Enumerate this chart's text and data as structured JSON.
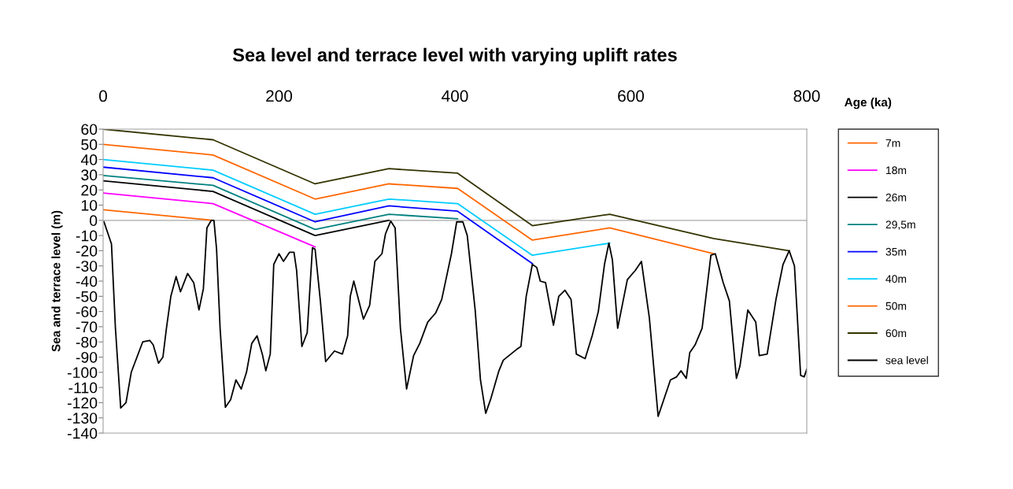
{
  "chart_data": {
    "type": "line",
    "title": "Sea level and terrace level with varying uplift rates",
    "xlabel": "Age (ka)",
    "ylabel": "Sea and terrace level (m)",
    "xlim": [
      0,
      800
    ],
    "xticks": [
      0,
      200,
      400,
      600,
      800
    ],
    "ylim": [
      -140,
      60
    ],
    "yticks": [
      -140,
      -130,
      -120,
      -110,
      -100,
      -90,
      -80,
      -70,
      -60,
      -50,
      -40,
      -30,
      -20,
      -10,
      0,
      10,
      20,
      30,
      40,
      50,
      60
    ],
    "grid": false,
    "legend": "right",
    "marker": "none",
    "line_style": "solid",
    "ref_lines": [
      {
        "axis": "y",
        "value": 0,
        "color": "#c0c0c0"
      }
    ],
    "series": [
      {
        "name": "7m",
        "color": "#ff6600",
        "x": [
          0,
          125
        ],
        "values": [
          7,
          0
        ]
      },
      {
        "name": "18m",
        "color": "#ff00ff",
        "x": [
          0,
          125,
          241
        ],
        "values": [
          18,
          11,
          -17.5
        ]
      },
      {
        "name": "26m",
        "color": "#000000",
        "x": [
          0,
          125,
          241,
          325
        ],
        "values": [
          26,
          19,
          -10,
          0
        ]
      },
      {
        "name": "29,5m",
        "color": "#008080",
        "x": [
          0,
          125,
          241,
          325,
          403
        ],
        "values": [
          29.5,
          23,
          -6,
          4,
          1
        ]
      },
      {
        "name": "35m",
        "color": "#0000ff",
        "x": [
          0,
          125,
          241,
          325,
          403,
          488
        ],
        "values": [
          35,
          28,
          -1,
          9.5,
          6,
          -28.5
        ]
      },
      {
        "name": "40m",
        "color": "#00ccff",
        "x": [
          0,
          125,
          241,
          325,
          403,
          488,
          576
        ],
        "values": [
          40,
          33,
          4,
          14,
          11,
          -23,
          -15
        ]
      },
      {
        "name": "50m",
        "color": "#ff6600",
        "x": [
          0,
          125,
          241,
          325,
          403,
          488,
          576,
          694
        ],
        "values": [
          50,
          43,
          14,
          24,
          21,
          -13,
          -5,
          -22
        ]
      },
      {
        "name": "60m",
        "color": "#333300",
        "x": [
          0,
          125,
          241,
          325,
          403,
          488,
          576,
          694,
          780
        ],
        "values": [
          60,
          53,
          24,
          34,
          31,
          -3.5,
          4,
          -12,
          -20
        ]
      },
      {
        "name": "sea level",
        "color": "#000000",
        "x": [
          1,
          9.5,
          14,
          20,
          26,
          32,
          45,
          53,
          57,
          63,
          68,
          72,
          77,
          83,
          88,
          96,
          103,
          109,
          114,
          118,
          123,
          126,
          129,
          133,
          139,
          145,
          151,
          157,
          163,
          169,
          175,
          181,
          185,
          190,
          194,
          200,
          205,
          212,
          217,
          220,
          226,
          232,
          238,
          241,
          247,
          253,
          263,
          272,
          278,
          281,
          285,
          296,
          303,
          309,
          317,
          321,
          327,
          332,
          338,
          345,
          353,
          360,
          369,
          378,
          385,
          396,
          402,
          409,
          414,
          423,
          429,
          435,
          441,
          450,
          455,
          470,
          475,
          481,
          488,
          493,
          497,
          503,
          512,
          518,
          525,
          532,
          538,
          548,
          556,
          563,
          570,
          575,
          579,
          585,
          596,
          605,
          612,
          621,
          631,
          645,
          652,
          657,
          663,
          667,
          673,
          681,
          691,
          696,
          705,
          712,
          720,
          724,
          733,
          742,
          746,
          755,
          765,
          773,
          780,
          786,
          793,
          797,
          800
        ],
        "values": [
          -1,
          -15.5,
          -71,
          -123.5,
          -120,
          -100,
          -80,
          -79,
          -82,
          -94,
          -90,
          -71,
          -50,
          -37,
          -47,
          -35,
          -41,
          -59,
          -45,
          -5,
          0,
          0,
          -19,
          -71,
          -123,
          -118,
          -105,
          -111,
          -100,
          -81,
          -76,
          -88,
          -99,
          -88,
          -29,
          -22,
          -27,
          -21,
          -21,
          -33,
          -83,
          -74,
          -18,
          -19,
          -53,
          -93,
          -86,
          -88,
          -76,
          -50,
          -40,
          -65,
          -56,
          -27,
          -22,
          -9,
          -0.5,
          -5,
          -71,
          -111,
          -89,
          -81,
          -67,
          -61,
          -52,
          -22,
          -1,
          -1,
          -10,
          -59,
          -105,
          -127,
          -117,
          -99,
          -92,
          -85,
          -83,
          -50,
          -29,
          -31,
          -40,
          -41,
          -69,
          -50,
          -46,
          -52,
          -88,
          -91,
          -76,
          -60,
          -29,
          -15,
          -26,
          -71,
          -39,
          -33,
          -27,
          -64,
          -129,
          -105,
          -103,
          -99,
          -104,
          -87,
          -82,
          -71,
          -23,
          -22,
          -41,
          -53,
          -104,
          -96,
          -59,
          -67,
          -89,
          -88,
          -52,
          -29,
          -20,
          -30,
          -102,
          -103,
          -98
        ]
      }
    ]
  }
}
